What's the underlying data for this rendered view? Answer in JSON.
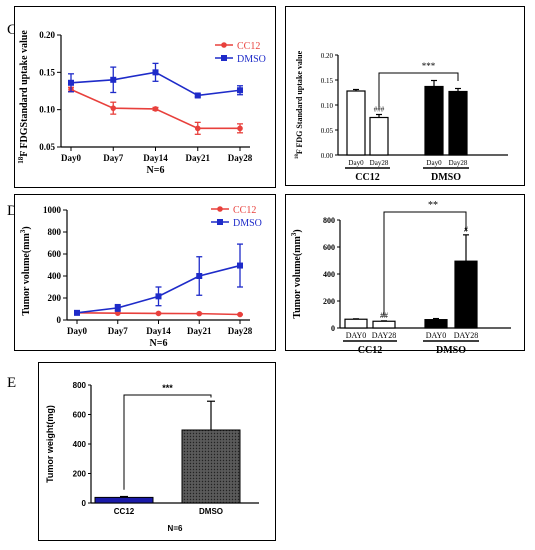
{
  "panels": {
    "c": {
      "letter": "C"
    },
    "d": {
      "letter": "D"
    },
    "e": {
      "letter": "E"
    }
  },
  "colors": {
    "cc12": "#e8403c",
    "dmso": "#1e2bc9",
    "bar_blue": "#1a1aa8",
    "bar_gray": "#4a4a4a"
  },
  "chart_data": [
    {
      "id": "c-line",
      "type": "line",
      "x": [
        "Day0",
        "Day7",
        "Day14",
        "Day21",
        "Day28"
      ],
      "series": [
        {
          "name": "CC12",
          "values": [
            0.127,
            0.102,
            0.101,
            0.075,
            0.075
          ],
          "err": [
            0.003,
            0.008,
            0.002,
            0.008,
            0.006
          ]
        },
        {
          "name": "DMSO",
          "values": [
            0.136,
            0.14,
            0.15,
            0.119,
            0.126
          ],
          "err": [
            0.012,
            0.017,
            0.012,
            0.002,
            0.006
          ]
        }
      ],
      "yticks": [
        "0.05",
        "0.10",
        "0.15",
        "0.20"
      ],
      "ylim": [
        0.05,
        0.2
      ],
      "ylabel_sup": "18",
      "ylabel": "F FDGStandard uptake value",
      "note": "N=6",
      "legend": "top-right"
    },
    {
      "id": "c-bar",
      "type": "bar",
      "categories": [
        "Day0",
        "Day28",
        "Day0",
        "Day28"
      ],
      "groups": [
        "CC12",
        "DMSO"
      ],
      "values": [
        0.128,
        0.075,
        0.137,
        0.127
      ],
      "err": [
        0.003,
        0.006,
        0.012,
        0.006
      ],
      "yticks": [
        "0.00",
        "0.05",
        "0.10",
        "0.15",
        "0.20"
      ],
      "ylim": [
        0,
        0.2
      ],
      "ylabel_sup": "18",
      "ylabel": "F FDG Standard uptake value",
      "annotations": {
        "hash": "###",
        "bracket": "***"
      }
    },
    {
      "id": "d-line",
      "type": "line",
      "x": [
        "Day0",
        "Day7",
        "Day14",
        "Day21",
        "Day28"
      ],
      "series": [
        {
          "name": "CC12",
          "values": [
            65,
            62,
            60,
            58,
            50
          ],
          "err": [
            3,
            3,
            3,
            3,
            3
          ]
        },
        {
          "name": "DMSO",
          "values": [
            65,
            110,
            215,
            400,
            495
          ],
          "err": [
            5,
            30,
            85,
            175,
            195
          ]
        }
      ],
      "yticks": [
        "0",
        "200",
        "400",
        "600",
        "800",
        "1000"
      ],
      "ylim": [
        0,
        1000
      ],
      "ylabel": "Tumor volume(mm",
      "ylabel_sup": "3",
      "ylabel_end": ")",
      "note": "N=6",
      "legend": "top-right"
    },
    {
      "id": "d-bar",
      "type": "bar",
      "categories": [
        "DAY0",
        "DAY28",
        "DAY0",
        "DAY28"
      ],
      "groups": [
        "CC12",
        "DMSO"
      ],
      "values": [
        65,
        50,
        62,
        495
      ],
      "err": [
        3,
        3,
        8,
        195
      ],
      "yticks": [
        "0",
        "200",
        "400",
        "600",
        "800"
      ],
      "ylim": [
        0,
        800
      ],
      "ylabel": "Tumor volume(mm",
      "ylabel_sup": "3",
      "ylabel_end": ")",
      "annotations": {
        "hash_left": "##",
        "hash_right": "#",
        "bracket": "**"
      }
    },
    {
      "id": "e-bar",
      "type": "bar",
      "categories": [
        "CC12",
        "DMSO"
      ],
      "values": [
        38,
        495
      ],
      "err": [
        6,
        195
      ],
      "yticks": [
        "0",
        "200",
        "400",
        "600",
        "800"
      ],
      "ylim": [
        0,
        800
      ],
      "ylabel": "Tumor weight(mg)",
      "note": "N=6",
      "annotations": {
        "bracket": "***"
      }
    }
  ]
}
